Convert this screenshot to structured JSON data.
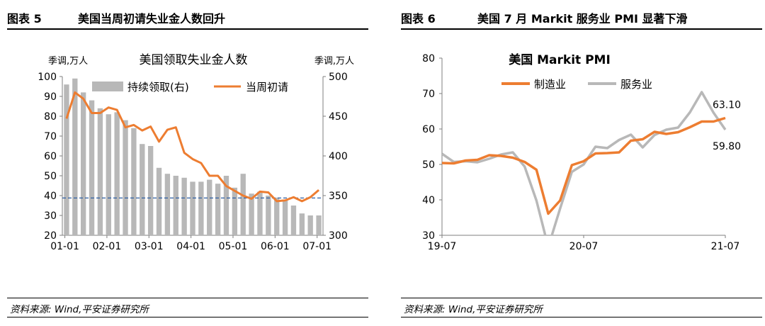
{
  "figures": [
    {
      "number": "图表 5",
      "title": "美国当周初请失业金人数回升",
      "source": "资料来源: Wind,平安证券研究所"
    },
    {
      "number": "图表 6",
      "title": "美国 7 月 Markit 服务业 PMI 显著下滑",
      "source": "资料来源: Wind,平安证券研究所"
    }
  ],
  "chart_data": [
    {
      "type": "bar+line",
      "title": "美国领取失业金人数",
      "left_axis_unit": "季调,万人",
      "right_axis_unit": "季调,万人",
      "left_ylim": [
        20,
        100
      ],
      "left_yticks": [
        "20",
        "30",
        "40",
        "50",
        "60",
        "70",
        "80",
        "90",
        "100"
      ],
      "right_ylim": [
        300,
        500
      ],
      "right_yticks": [
        "300",
        "350",
        "400",
        "450",
        "500"
      ],
      "xticks": [
        "01-01",
        "02-01",
        "03-01",
        "04-01",
        "05-01",
        "06-01",
        "07-01"
      ],
      "legend_placement": "top-left",
      "reference_line_right_axis": 347,
      "series": [
        {
          "name": "持续领取(右)",
          "kind": "bar",
          "axis": "left",
          "color": "#b8b8b8",
          "x": [
            0,
            1,
            2,
            3,
            4,
            5,
            6,
            7,
            8,
            9,
            10,
            11,
            12,
            13,
            14,
            15,
            16,
            17,
            18,
            19,
            20,
            21,
            22,
            23,
            24,
            25,
            26,
            27,
            28,
            29,
            30
          ],
          "values": [
            96,
            99,
            92,
            88,
            84,
            81,
            82,
            78,
            74,
            66,
            65,
            54,
            51,
            50,
            49,
            47,
            47,
            48,
            46,
            50,
            44,
            51,
            41,
            42,
            40,
            39,
            38,
            35,
            31,
            30,
            30
          ]
        },
        {
          "name": "当周初请",
          "kind": "line",
          "axis": "right",
          "color": "#ed7d31",
          "x": [
            0,
            1,
            2,
            3,
            4,
            5,
            6,
            7,
            8,
            9,
            10,
            11,
            12,
            13,
            14,
            15,
            16,
            17,
            18,
            19,
            20,
            21,
            22,
            23,
            24,
            25,
            26,
            27,
            28,
            29,
            30
          ],
          "values": [
            447,
            480,
            472,
            454,
            454,
            461,
            458,
            436,
            439,
            432,
            437,
            418,
            433,
            436,
            404,
            396,
            391,
            375,
            375,
            362,
            356,
            350,
            346,
            355,
            354,
            343,
            344,
            348,
            343,
            348,
            357
          ]
        }
      ]
    },
    {
      "type": "line",
      "title": "美国 Markit PMI",
      "ylim": [
        30,
        80
      ],
      "yticks": [
        "30",
        "40",
        "50",
        "60",
        "70",
        "80"
      ],
      "xticks": [
        "19-07",
        "20-07",
        "21-07"
      ],
      "x_range_months": [
        0,
        24
      ],
      "legend_placement": "top-center",
      "series": [
        {
          "name": "制造业",
          "color": "#ed7d31",
          "x": [
            0,
            1,
            2,
            3,
            4,
            5,
            6,
            7,
            8,
            9,
            10,
            11,
            12,
            13,
            14,
            15,
            16,
            17,
            18,
            19,
            20,
            21,
            22,
            23,
            24
          ],
          "values": [
            50.4,
            50.3,
            51.1,
            51.3,
            52.6,
            52.4,
            51.9,
            50.7,
            48.5,
            36.1,
            39.8,
            49.8,
            50.9,
            53.1,
            53.2,
            53.4,
            56.7,
            57.1,
            59.2,
            58.6,
            59.1,
            60.5,
            62.1,
            62.1,
            63.1
          ]
        },
        {
          "name": "服务业",
          "color": "#b8b8b8",
          "x": [
            0,
            1,
            2,
            3,
            4,
            5,
            6,
            7,
            8,
            9,
            10,
            11,
            12,
            13,
            14,
            15,
            16,
            17,
            18,
            19,
            20,
            21,
            22,
            23,
            24
          ],
          "values": [
            53.0,
            50.7,
            50.9,
            50.6,
            51.6,
            52.8,
            53.4,
            49.4,
            39.8,
            26.7,
            37.5,
            47.9,
            50.0,
            55.0,
            54.6,
            56.9,
            58.4,
            54.8,
            58.3,
            59.8,
            60.4,
            64.7,
            70.4,
            64.6,
            59.8
          ]
        }
      ],
      "annotations": [
        "63.10",
        "59.80"
      ]
    }
  ]
}
